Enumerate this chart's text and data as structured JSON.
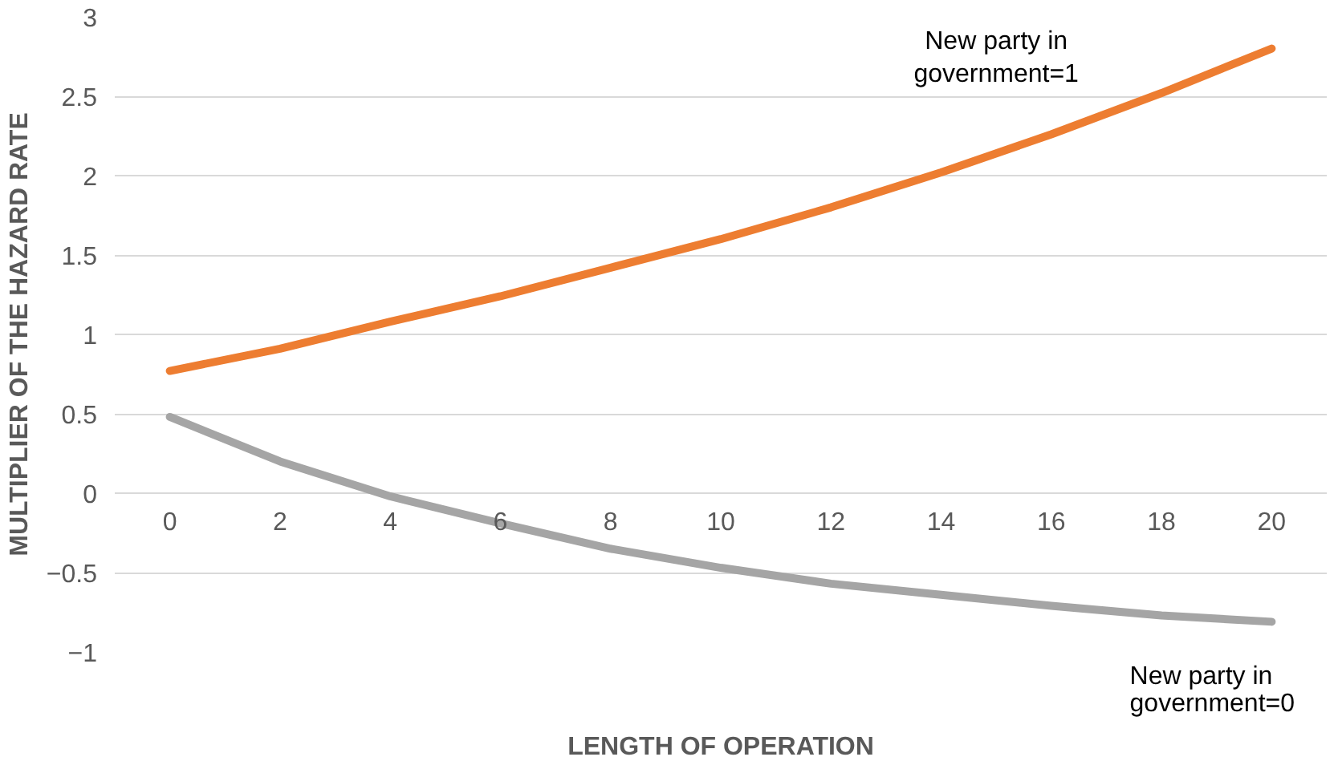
{
  "chart_data": {
    "type": "line",
    "xlabel": "LENGTH OF OPERATION",
    "ylabel": "MULTIPLIER OF THE HAZARD RATE",
    "x": [
      0,
      2,
      4,
      6,
      8,
      10,
      12,
      14,
      16,
      18,
      20
    ],
    "series": [
      {
        "color": "#ed7d31",
        "values": [
          0.77,
          0.91,
          1.08,
          1.24,
          1.42,
          1.6,
          1.8,
          2.02,
          2.26,
          2.52,
          2.8
        ]
      },
      {
        "color": "#a5a5a5",
        "values": [
          0.48,
          0.2,
          -0.02,
          -0.19,
          -0.35,
          -0.47,
          -0.57,
          -0.64,
          -0.71,
          -0.77,
          -0.81
        ]
      }
    ],
    "xlim": [
      -1,
      21
    ],
    "xticks": [
      0,
      2,
      4,
      6,
      8,
      10,
      12,
      14,
      16,
      18,
      20
    ],
    "ylim": [
      -1,
      3
    ],
    "yticks": [
      -1,
      -0.5,
      0,
      0.5,
      1,
      1.5,
      2,
      2.5,
      3
    ],
    "grid": "y",
    "marker": "none",
    "line_style": "solid",
    "annotations": [
      "New party in\ngovernment=1",
      "New party in\ngovernment=0"
    ]
  }
}
